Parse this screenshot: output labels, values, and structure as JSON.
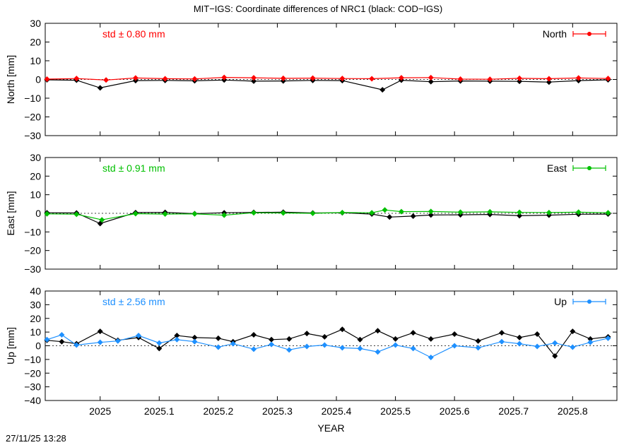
{
  "figure": {
    "title": "MIT−IGS: Coordinate differences of NRC1 (black: COD−IGS)",
    "timestamp": "27/11/25 13:28"
  },
  "colors": {
    "north": "#ff0000",
    "east": "#00c000",
    "up": "#1e90ff",
    "reference": "#000000"
  },
  "chart_data": [
    {
      "type": "scatter",
      "panel": "north",
      "ylabel": "North [mm]",
      "legend": "North",
      "legend_placement": "top-right",
      "std_label": "std ± 0.80 mm",
      "xlim": [
        2024.907,
        2025.875
      ],
      "ylim": [
        -30,
        30
      ],
      "yticks": [
        -30,
        -20,
        -10,
        0,
        10,
        20,
        30
      ],
      "grid": false,
      "series": [
        {
          "name": "MIT−IGS",
          "color": "#ff0000",
          "x": [
            2024.91,
            2024.96,
            2025.01,
            2025.06,
            2025.11,
            2025.16,
            2025.21,
            2025.26,
            2025.31,
            2025.36,
            2025.41,
            2025.46,
            2025.51,
            2025.56,
            2025.61,
            2025.66,
            2025.71,
            2025.76,
            2025.81,
            2025.86
          ],
          "y": [
            0.2,
            0.5,
            -0.3,
            0.8,
            0.4,
            0.3,
            1.1,
            0.9,
            0.6,
            0.7,
            0.5,
            0.4,
            0.9,
            1.0,
            0.2,
            0.1,
            0.6,
            0.4,
            0.8,
            0.5
          ]
        },
        {
          "name": "COD−IGS",
          "color": "#000000",
          "x": [
            2024.91,
            2024.96,
            2025.0,
            2025.06,
            2025.11,
            2025.16,
            2025.21,
            2025.26,
            2025.31,
            2025.36,
            2025.41,
            2025.478,
            2025.51,
            2025.56,
            2025.61,
            2025.66,
            2025.71,
            2025.76,
            2025.81,
            2025.86
          ],
          "y": [
            -0.2,
            -0.4,
            -4.5,
            -0.6,
            -0.5,
            -0.7,
            -0.3,
            -0.9,
            -0.8,
            -0.5,
            -0.6,
            -5.5,
            -0.4,
            -1.2,
            -0.8,
            -0.9,
            -1.0,
            -1.4,
            -0.6,
            -0.2
          ]
        }
      ]
    },
    {
      "type": "scatter",
      "panel": "east",
      "ylabel": "East [mm]",
      "legend": "East",
      "legend_placement": "top-right",
      "std_label": "std ± 0.91 mm",
      "xlim": [
        2024.907,
        2025.875
      ],
      "ylim": [
        -30,
        30
      ],
      "yticks": [
        -30,
        -20,
        -10,
        0,
        10,
        20,
        30
      ],
      "grid": false,
      "series": [
        {
          "name": "MIT−IGS",
          "color": "#00c000",
          "x": [
            2024.91,
            2024.96,
            2025.003,
            2025.06,
            2025.11,
            2025.16,
            2025.21,
            2025.26,
            2025.31,
            2025.36,
            2025.41,
            2025.46,
            2025.482,
            2025.51,
            2025.56,
            2025.61,
            2025.66,
            2025.71,
            2025.76,
            2025.81,
            2025.86
          ],
          "y": [
            -0.3,
            -0.5,
            -3.5,
            -0.2,
            -0.4,
            -0.3,
            -1.0,
            0.3,
            0.2,
            0.0,
            0.4,
            0.3,
            1.8,
            0.9,
            1.0,
            0.6,
            0.8,
            0.5,
            0.4,
            0.6,
            0.3
          ]
        },
        {
          "name": "COD−IGS",
          "color": "#000000",
          "x": [
            2024.91,
            2024.96,
            2025.0,
            2025.06,
            2025.11,
            2025.16,
            2025.21,
            2025.26,
            2025.31,
            2025.36,
            2025.41,
            2025.46,
            2025.49,
            2025.53,
            2025.56,
            2025.61,
            2025.66,
            2025.71,
            2025.76,
            2025.81,
            2025.86
          ],
          "y": [
            0.3,
            0.2,
            -5.5,
            0.4,
            0.5,
            -0.2,
            0.3,
            0.5,
            0.6,
            0.2,
            0.3,
            -0.4,
            -2.0,
            -1.5,
            -0.9,
            -0.8,
            -0.6,
            -1.3,
            -1.0,
            -0.5,
            -0.4
          ]
        }
      ]
    },
    {
      "type": "scatter",
      "panel": "up",
      "ylabel": "Up [mm]",
      "legend": "Up",
      "legend_placement": "top-right",
      "std_label": "std ± 2.56 mm",
      "xlim": [
        2024.907,
        2025.875
      ],
      "ylim": [
        -40,
        40
      ],
      "yticks": [
        -40,
        -30,
        -20,
        -10,
        0,
        10,
        20,
        30,
        40
      ],
      "xticks": [
        2025,
        2025.1,
        2025.2,
        2025.3,
        2025.4,
        2025.5,
        2025.6,
        2025.7,
        2025.8
      ],
      "xticklabels": [
        "2025",
        "2025.1",
        "2025.2",
        "2025.3",
        "2025.4",
        "2025.5",
        "2025.6",
        "2025.7",
        "2025.8"
      ],
      "xlabel": "YEAR",
      "grid": false,
      "series": [
        {
          "name": "MIT−IGS",
          "color": "#1e90ff",
          "x": [
            2024.91,
            2024.935,
            2024.96,
            2025.0,
            2025.03,
            2025.065,
            2025.1,
            2025.13,
            2025.16,
            2025.2,
            2025.225,
            2025.26,
            2025.29,
            2025.32,
            2025.35,
            2025.38,
            2025.41,
            2025.44,
            2025.47,
            2025.5,
            2025.53,
            2025.56,
            2025.6,
            2025.64,
            2025.68,
            2025.71,
            2025.74,
            2025.77,
            2025.8,
            2025.83,
            2025.86
          ],
          "y": [
            4.5,
            8.0,
            0.5,
            2.5,
            3.5,
            7.5,
            2.0,
            4.5,
            3.0,
            -1.0,
            1.5,
            -2.5,
            1.0,
            -3.0,
            -0.5,
            0.5,
            -1.5,
            -2.0,
            -4.5,
            0.5,
            -2.0,
            -8.5,
            0.0,
            -1.5,
            3.0,
            1.5,
            -0.5,
            2.0,
            -1.0,
            2.5,
            5.5
          ]
        },
        {
          "name": "COD−IGS",
          "color": "#000000",
          "x": [
            2024.91,
            2024.935,
            2024.96,
            2025.0,
            2025.03,
            2025.065,
            2025.1,
            2025.13,
            2025.16,
            2025.2,
            2025.225,
            2025.26,
            2025.29,
            2025.32,
            2025.35,
            2025.38,
            2025.41,
            2025.44,
            2025.47,
            2025.5,
            2025.53,
            2025.56,
            2025.6,
            2025.64,
            2025.68,
            2025.71,
            2025.74,
            2025.77,
            2025.8,
            2025.83,
            2025.86
          ],
          "y": [
            4.0,
            3.0,
            1.5,
            10.5,
            4.0,
            6.0,
            -2.0,
            7.5,
            6.0,
            5.5,
            3.0,
            8.0,
            4.5,
            5.0,
            9.0,
            6.5,
            12.0,
            4.5,
            11.0,
            5.0,
            9.5,
            5.0,
            8.5,
            3.5,
            9.5,
            6.0,
            8.5,
            -7.5,
            10.5,
            5.0,
            6.5
          ]
        }
      ]
    }
  ]
}
